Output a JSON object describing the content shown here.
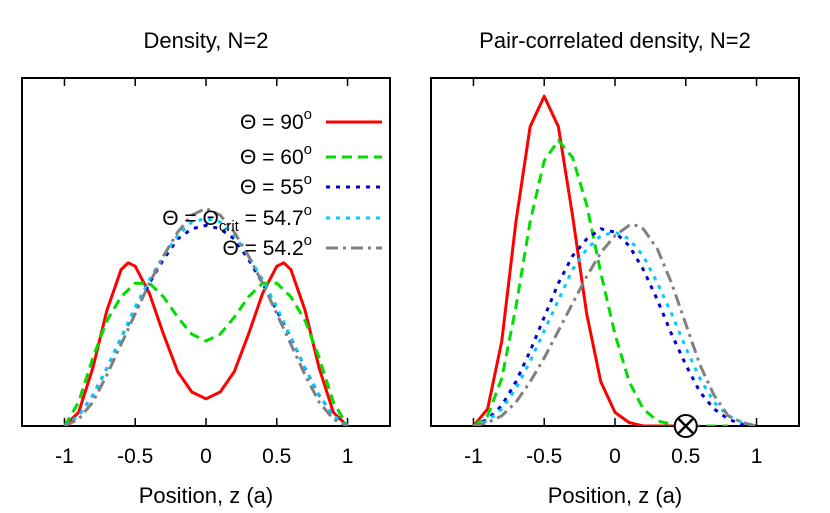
{
  "chart_data": [
    {
      "type": "line",
      "title": "Density, N=2",
      "xlabel": "Position, z (a)",
      "ylabel": "",
      "xlim": [
        -1.3,
        1.3
      ],
      "ylim": [
        0,
        1.0
      ],
      "xticks": [
        -1,
        -0.5,
        0,
        0.5,
        1
      ],
      "xtick_labels": [
        "-1",
        "-0.5",
        "0",
        "0.5",
        "1"
      ],
      "grid": false,
      "legend_position": "top-right",
      "legend": [
        {
          "prefix": "Θ = 90",
          "sub": "",
          "suffix": "",
          "sup": "o"
        },
        {
          "prefix": "Θ = 60",
          "sub": "",
          "suffix": "",
          "sup": "o"
        },
        {
          "prefix": "Θ = 55",
          "sub": "",
          "suffix": "",
          "sup": "o"
        },
        {
          "prefix": "Θ = Θ",
          "sub": "crit",
          "suffix": " = 54.7",
          "sup": "o"
        },
        {
          "prefix": "Θ = 54.2",
          "sub": "",
          "suffix": "",
          "sup": "o"
        }
      ],
      "series": [
        {
          "style": "solid",
          "color": "#ff0000",
          "x": [
            -1,
            -0.9,
            -0.8,
            -0.7,
            -0.6,
            -0.55,
            -0.5,
            -0.4,
            -0.3,
            -0.2,
            -0.1,
            0,
            0.1,
            0.2,
            0.3,
            0.4,
            0.5,
            0.55,
            0.6,
            0.7,
            0.8,
            0.9,
            1
          ],
          "y": [
            0,
            0.04,
            0.17,
            0.34,
            0.46,
            0.48,
            0.47,
            0.39,
            0.27,
            0.16,
            0.1,
            0.08,
            0.1,
            0.16,
            0.27,
            0.39,
            0.47,
            0.48,
            0.46,
            0.34,
            0.17,
            0.04,
            0
          ]
        },
        {
          "style": "dashed",
          "color": "#00dd00",
          "x": [
            -1,
            -0.9,
            -0.8,
            -0.7,
            -0.6,
            -0.5,
            -0.4,
            -0.3,
            -0.2,
            -0.1,
            0,
            0.1,
            0.2,
            0.3,
            0.4,
            0.5,
            0.6,
            0.7,
            0.8,
            0.9,
            1
          ],
          "y": [
            0,
            0.07,
            0.2,
            0.31,
            0.38,
            0.42,
            0.42,
            0.38,
            0.32,
            0.27,
            0.25,
            0.27,
            0.32,
            0.38,
            0.42,
            0.42,
            0.38,
            0.31,
            0.2,
            0.07,
            0
          ]
        },
        {
          "style": "dotted",
          "color": "#0000cc",
          "x": [
            -1,
            -0.9,
            -0.8,
            -0.7,
            -0.6,
            -0.5,
            -0.4,
            -0.3,
            -0.2,
            -0.1,
            0,
            0.1,
            0.2,
            0.3,
            0.4,
            0.5,
            0.6,
            0.7,
            0.8,
            0.9,
            1
          ],
          "y": [
            0,
            0.03,
            0.09,
            0.17,
            0.26,
            0.34,
            0.42,
            0.49,
            0.55,
            0.58,
            0.59,
            0.58,
            0.55,
            0.49,
            0.42,
            0.34,
            0.26,
            0.17,
            0.09,
            0.03,
            0
          ]
        },
        {
          "style": "dotted",
          "color": "#00ccff",
          "x": [
            -1,
            -0.9,
            -0.8,
            -0.7,
            -0.6,
            -0.5,
            -0.4,
            -0.3,
            -0.2,
            -0.1,
            0,
            0.1,
            0.2,
            0.3,
            0.4,
            0.5,
            0.6,
            0.7,
            0.8,
            0.9,
            1
          ],
          "y": [
            0,
            0.03,
            0.09,
            0.17,
            0.26,
            0.35,
            0.43,
            0.5,
            0.56,
            0.6,
            0.61,
            0.6,
            0.56,
            0.5,
            0.43,
            0.35,
            0.26,
            0.17,
            0.09,
            0.03,
            0
          ]
        },
        {
          "style": "dashdot",
          "color": "#808080",
          "x": [
            -1,
            -0.9,
            -0.8,
            -0.7,
            -0.6,
            -0.5,
            -0.4,
            -0.3,
            -0.2,
            -0.1,
            0,
            0.1,
            0.2,
            0.3,
            0.4,
            0.5,
            0.6,
            0.7,
            0.8,
            0.9,
            1
          ],
          "y": [
            0,
            0.02,
            0.07,
            0.15,
            0.24,
            0.33,
            0.42,
            0.5,
            0.57,
            0.62,
            0.64,
            0.62,
            0.57,
            0.5,
            0.42,
            0.33,
            0.24,
            0.15,
            0.07,
            0.02,
            0
          ]
        }
      ]
    },
    {
      "type": "line",
      "title": "Pair-correlated density, N=2",
      "xlabel": "Position, z (a)",
      "ylabel": "",
      "xlim": [
        -1.3,
        1.3
      ],
      "ylim": [
        0,
        1.0
      ],
      "xticks": [
        -1,
        -0.5,
        0,
        0.5,
        1
      ],
      "xtick_labels": [
        "-1",
        "-0.5",
        "0",
        "0.5",
        "1"
      ],
      "grid": false,
      "marker": {
        "x": 0.5,
        "y": 0,
        "symbol": "⊗"
      },
      "series": [
        {
          "style": "solid",
          "color": "#ff0000",
          "x": [
            -1,
            -0.9,
            -0.8,
            -0.7,
            -0.6,
            -0.5,
            -0.4,
            -0.3,
            -0.2,
            -0.1,
            0,
            0.1,
            0.2,
            0.3,
            0.4,
            0.5
          ],
          "y": [
            0,
            0.05,
            0.25,
            0.6,
            0.88,
            0.97,
            0.88,
            0.62,
            0.33,
            0.13,
            0.04,
            0.01,
            0,
            0,
            0,
            0
          ]
        },
        {
          "style": "dashed",
          "color": "#00dd00",
          "x": [
            -1,
            -0.9,
            -0.8,
            -0.7,
            -0.6,
            -0.5,
            -0.4,
            -0.3,
            -0.2,
            -0.1,
            0,
            0.1,
            0.2,
            0.3,
            0.4,
            0.5,
            0.6,
            0.7,
            0.8
          ],
          "y": [
            0,
            0.03,
            0.14,
            0.35,
            0.6,
            0.78,
            0.84,
            0.79,
            0.65,
            0.45,
            0.27,
            0.13,
            0.05,
            0.015,
            0.005,
            0,
            0,
            0,
            0
          ]
        },
        {
          "style": "dotted",
          "color": "#0000cc",
          "x": [
            -1,
            -0.9,
            -0.8,
            -0.7,
            -0.6,
            -0.5,
            -0.4,
            -0.3,
            -0.2,
            -0.1,
            0,
            0.1,
            0.2,
            0.3,
            0.4,
            0.5,
            0.6,
            0.7,
            0.8,
            0.9,
            1
          ],
          "y": [
            0,
            0.02,
            0.06,
            0.13,
            0.22,
            0.32,
            0.42,
            0.5,
            0.55,
            0.58,
            0.57,
            0.53,
            0.46,
            0.37,
            0.27,
            0.18,
            0.1,
            0.05,
            0.02,
            0.005,
            0
          ]
        },
        {
          "style": "dotted",
          "color": "#00ccff",
          "x": [
            -1,
            -0.9,
            -0.8,
            -0.7,
            -0.6,
            -0.5,
            -0.4,
            -0.3,
            -0.2,
            -0.1,
            0,
            0.1,
            0.2,
            0.3,
            0.4,
            0.5,
            0.6,
            0.7,
            0.8,
            0.9,
            1
          ],
          "y": [
            0,
            0.015,
            0.05,
            0.11,
            0.19,
            0.28,
            0.37,
            0.46,
            0.52,
            0.56,
            0.57,
            0.55,
            0.5,
            0.42,
            0.33,
            0.23,
            0.14,
            0.07,
            0.03,
            0.01,
            0
          ]
        },
        {
          "style": "dashdot",
          "color": "#808080",
          "x": [
            -1,
            -0.9,
            -0.8,
            -0.7,
            -0.6,
            -0.5,
            -0.4,
            -0.3,
            -0.2,
            -0.1,
            0,
            0.1,
            0.15,
            0.2,
            0.3,
            0.4,
            0.5,
            0.6,
            0.7,
            0.8,
            0.9,
            1
          ],
          "y": [
            0,
            0.01,
            0.03,
            0.07,
            0.13,
            0.2,
            0.28,
            0.36,
            0.44,
            0.51,
            0.56,
            0.59,
            0.59,
            0.58,
            0.52,
            0.42,
            0.3,
            0.18,
            0.09,
            0.03,
            0.01,
            0
          ]
        }
      ]
    }
  ]
}
